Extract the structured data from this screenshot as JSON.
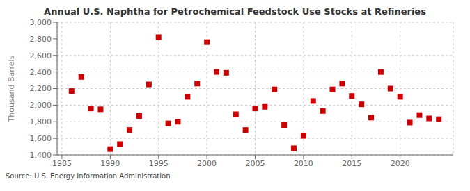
{
  "chart_data": {
    "type": "scatter",
    "title": "Annual U.S. Naphtha for Petrochemical Feedstock Use Stocks at Refineries",
    "ylabel": "Thousand Barrels",
    "annotations": [
      "Source: U.S. Energy Information Administration"
    ],
    "x": [
      1986,
      1987,
      1988,
      1989,
      1990,
      1991,
      1992,
      1993,
      1994,
      1995,
      1996,
      1997,
      1998,
      1999,
      2000,
      2001,
      2002,
      2003,
      2004,
      2005,
      2006,
      2007,
      2008,
      2009,
      2010,
      2011,
      2012,
      2013,
      2014,
      2015,
      2016,
      2017,
      2018,
      2019,
      2020,
      2021,
      2022,
      2023,
      2024
    ],
    "values": [
      2170,
      2340,
      1960,
      1950,
      1470,
      1530,
      1700,
      1870,
      2250,
      2820,
      1780,
      1800,
      2100,
      2260,
      2760,
      2400,
      2390,
      1890,
      1700,
      1960,
      1980,
      2190,
      1760,
      1480,
      1630,
      2050,
      1930,
      2190,
      2260,
      2110,
      2010,
      1850,
      2400,
      2200,
      2100,
      1790,
      1880,
      1840,
      1830
    ],
    "color": "#cc0000",
    "marker": "square",
    "xlim": [
      1984.5,
      2025.5
    ],
    "xticks": [
      1985,
      1990,
      1995,
      2000,
      2005,
      2010,
      2015,
      2020
    ],
    "ylim": [
      1400,
      3000
    ],
    "yticks": [
      {
        "value": 1400,
        "label": "1,400"
      },
      {
        "value": 1600,
        "label": "1,600"
      },
      {
        "value": 1800,
        "label": "1,800"
      },
      {
        "value": 2000,
        "label": "2,000"
      },
      {
        "value": 2200,
        "label": "2,200"
      },
      {
        "value": 2400,
        "label": "2,400"
      },
      {
        "value": 2600,
        "label": "2,600"
      },
      {
        "value": 2800,
        "label": "2,800"
      },
      {
        "value": 3000,
        "label": "3,000"
      }
    ],
    "grid": true
  }
}
